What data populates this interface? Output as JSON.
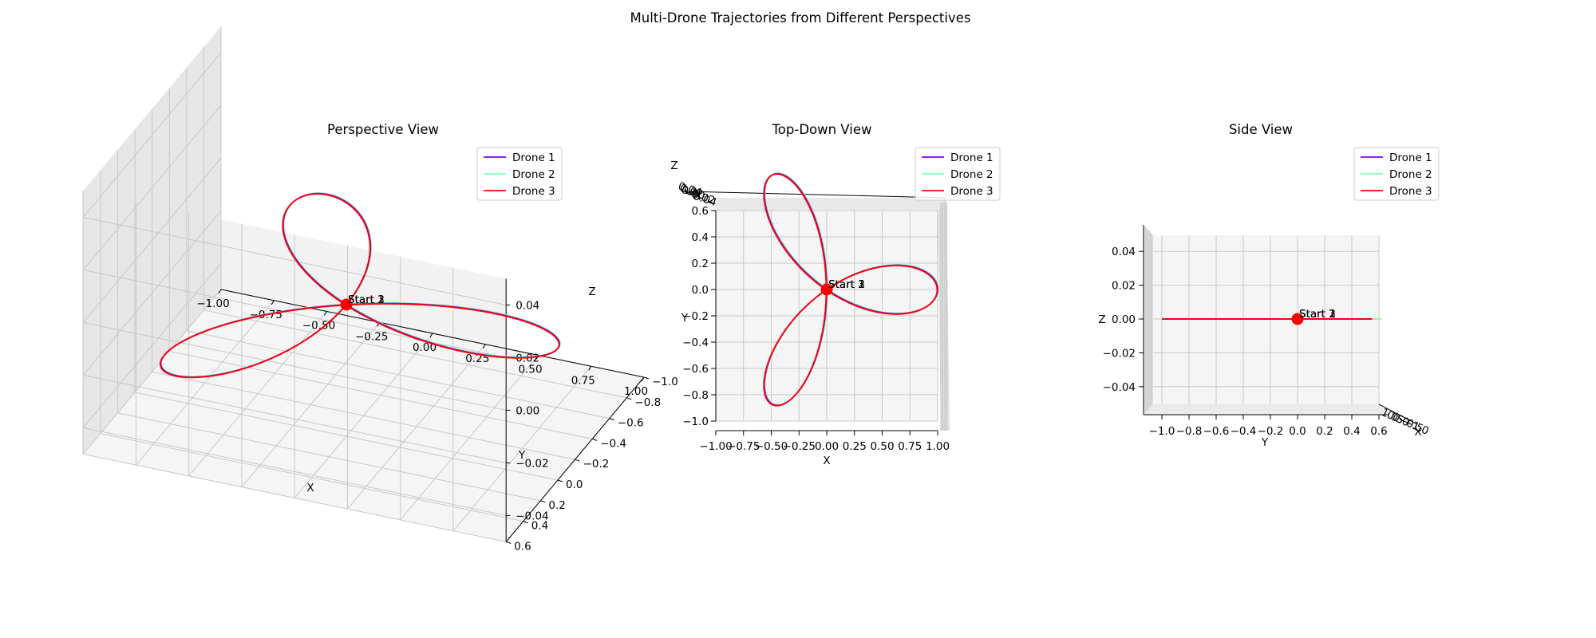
{
  "figure": {
    "title": "Multi-Drone Trajectories from Different Perspectives"
  },
  "legend_placement": "top-right",
  "series_colors": [
    "#7f00ff",
    "#80ffb4",
    "#ff0000"
  ],
  "chart_data": [
    {
      "type": "line",
      "title": "Perspective View",
      "view": "perspective 3D",
      "xlabel": "X",
      "ylabel": "Y",
      "zlabel": "Z",
      "xlim": [
        -1.0,
        1.0
      ],
      "ylim": [
        -1.0,
        0.6
      ],
      "zlim": [
        -0.05,
        0.05
      ],
      "xticks": [
        "−1.00",
        "−0.75",
        "−0.50",
        "−0.25",
        "0.00",
        "0.25",
        "0.50",
        "0.75",
        "1.00"
      ],
      "yticks": [
        "−1.0",
        "−0.8",
        "−0.6",
        "−0.4",
        "−0.2",
        "0.0",
        "0.2",
        "0.4",
        "0.6"
      ],
      "zticks": [
        "−0.04",
        "−0.02",
        "0.00",
        "0.02",
        "0.04"
      ],
      "grid": true,
      "legend": [
        "Drone 1",
        "Drone 2",
        "Drone 3"
      ],
      "start_point": {
        "x": 0,
        "y": 0,
        "z": 0
      },
      "start_labels": [
        "Start 1",
        "Start 2",
        "Start 3"
      ],
      "series": [
        {
          "name": "Drone 1",
          "curve": "three-petal rose r = cos(3θ)",
          "z": 0
        },
        {
          "name": "Drone 2",
          "curve": "three-petal rose r = cos(3θ)",
          "z": 0
        },
        {
          "name": "Drone 3",
          "curve": "three-petal rose r = cos(3θ)",
          "z": 0
        }
      ]
    },
    {
      "type": "line",
      "title": "Top-Down View",
      "view": "top-down (elev 90)",
      "xlabel": "X",
      "ylabel": "Y",
      "zlabel": "Z",
      "xlim": [
        -1.0,
        1.0
      ],
      "ylim": [
        -1.0,
        0.6
      ],
      "xticks": [
        "−1.00",
        "−0.75",
        "−0.50",
        "−0.25",
        "0.00",
        "0.25",
        "0.50",
        "0.75",
        "1.00"
      ],
      "yticks": [
        "−1.0",
        "−0.8",
        "−0.6",
        "−0.4",
        "−0.2",
        "0.0",
        "0.2",
        "0.4",
        "0.6"
      ],
      "zticks": [
        "0.04",
        "0.02",
        "0.00",
        "−0.02",
        "−0.04"
      ],
      "grid": true,
      "legend": [
        "Drone 1",
        "Drone 2",
        "Drone 3"
      ],
      "start_labels": [
        "Start 1",
        "Start 2",
        "Start 3"
      ],
      "series": [
        {
          "name": "Drone 1",
          "curve": "three-petal rose r = cos(3θ)"
        },
        {
          "name": "Drone 2",
          "curve": "three-petal rose r = cos(3θ)"
        },
        {
          "name": "Drone 3",
          "curve": "three-petal rose r = cos(3θ)"
        }
      ]
    },
    {
      "type": "line",
      "title": "Side View",
      "view": "side (elev 0)",
      "xlabel": "X",
      "ylabel": "Y",
      "zlabel": "Z",
      "ylim": [
        -1.0,
        0.6
      ],
      "zlim": [
        -0.05,
        0.05
      ],
      "yticks": [
        "−1.0",
        "−0.8",
        "−0.6",
        "−0.4",
        "−0.2",
        "0.0",
        "0.2",
        "0.4",
        "0.6"
      ],
      "zticks": [
        "0.04",
        "0.02",
        "0.00",
        "−0.02",
        "−0.04"
      ],
      "xticks": [
        "1.0",
        "0.5",
        "0.0",
        "−0.5",
        "−1.0"
      ],
      "grid": true,
      "legend": [
        "Drone 1",
        "Drone 2",
        "Drone 3"
      ],
      "start_labels": [
        "Start 1",
        "Start 2",
        "Start 3"
      ],
      "series": [
        {
          "name": "Drone 1",
          "curve": "flat line z = 0, y from −1.0 to 0.6"
        },
        {
          "name": "Drone 2",
          "curve": "flat line z = 0, y from −1.0 to 0.6"
        },
        {
          "name": "Drone 3",
          "curve": "flat line z = 0, y from −1.0 to 0.6"
        }
      ]
    }
  ]
}
